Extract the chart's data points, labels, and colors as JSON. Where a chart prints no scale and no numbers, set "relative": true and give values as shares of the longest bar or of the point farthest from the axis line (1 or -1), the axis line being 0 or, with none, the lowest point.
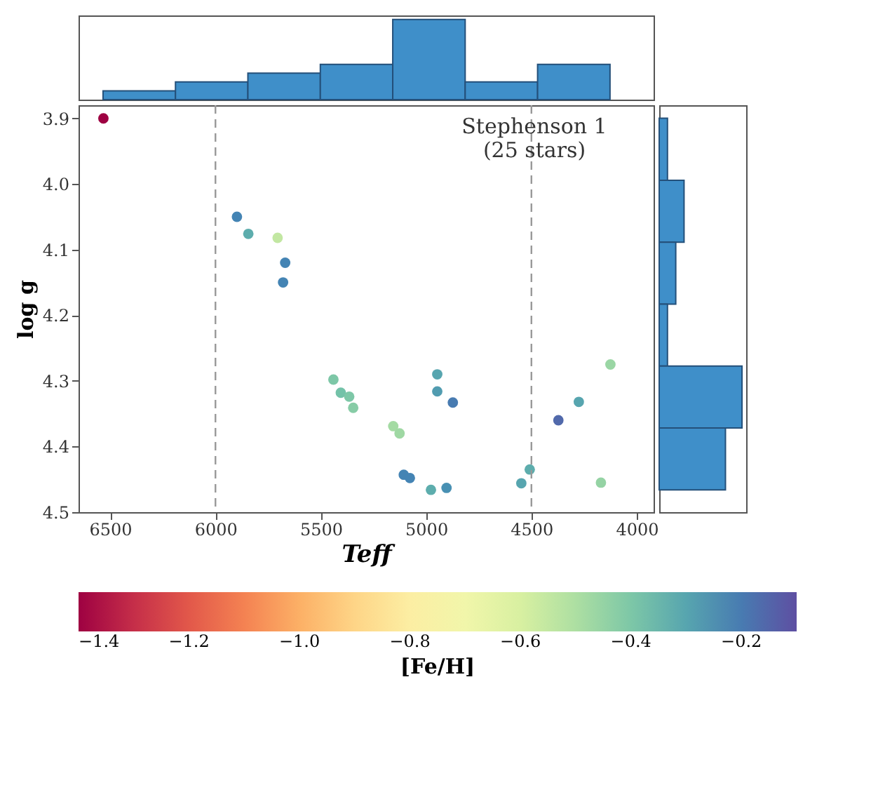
{
  "chart_data": [
    {
      "type": "bar",
      "categories": [
        null,
        null,
        null,
        null,
        null,
        null,
        null
      ],
      "values": [
        0.11,
        0.22,
        0.33,
        0.44,
        1,
        0.22,
        0.44
      ],
      "relative": true,
      "color": "#3f8fc9"
    },
    {
      "type": "scatter",
      "marker": "circle",
      "grid": false,
      "x": [
        6532,
        5898,
        5844,
        5705,
        5669,
        5679,
        5440,
        5405,
        5365,
        5346,
        5156,
        5126,
        5106,
        5077,
        4977,
        4903,
        4947,
        4947,
        4873,
        4548,
        4508,
        4372,
        4275,
        4125,
        4170
      ],
      "values": [
        3.9,
        4.05,
        4.076,
        4.082,
        4.12,
        4.15,
        4.298,
        4.318,
        4.324,
        4.341,
        4.369,
        4.38,
        4.443,
        4.448,
        4.466,
        4.463,
        4.29,
        4.316,
        4.333,
        4.456,
        4.435,
        4.36,
        4.332,
        4.275,
        4.455
      ],
      "cvalues": [
        -1.4,
        -0.22,
        -0.32,
        -0.55,
        -0.22,
        -0.22,
        -0.4,
        -0.38,
        -0.4,
        -0.42,
        -0.48,
        -0.47,
        -0.22,
        -0.22,
        -0.32,
        -0.25,
        -0.3,
        -0.28,
        -0.2,
        -0.3,
        -0.32,
        -0.16,
        -0.3,
        -0.46,
        -0.45
      ],
      "xlim": [
        6650,
        3920
      ],
      "xticks": [
        6500,
        6000,
        5500,
        5000,
        4500,
        4000
      ],
      "ylim": [
        4.5,
        3.88
      ],
      "yticks": [
        3.9,
        {
          "value": 4,
          "label": "4.0"
        },
        4.1,
        4.2,
        4.3,
        4.4,
        4.5
      ],
      "clim": [
        -1.4,
        -0.1
      ],
      "cticks": [
        -1.4,
        -1.2,
        {
          "value": -1,
          "label": "−1.0"
        },
        -0.8,
        -0.6,
        -0.4,
        -0.2
      ],
      "clabel": "[Fe/H]",
      "xlabel": "Teff",
      "ylabel": "log g",
      "annotations": [
        "Stephenson 1\n(25 stars)"
      ],
      "ref_lines": [
        {
          "axis": "x",
          "value": 6000,
          "label": null,
          "color": "#999999",
          "line_style": "dashed"
        },
        {
          "axis": "x",
          "value": 4500,
          "label": null,
          "color": "#999999",
          "line_style": "dashed"
        }
      ]
    },
    {
      "type": "bar",
      "orientation": "horizontal",
      "categories": [
        null,
        null,
        null,
        null,
        null,
        null
      ],
      "values": [
        0.1,
        0.3,
        0.2,
        0.1,
        1,
        0.8
      ],
      "relative": true,
      "color": "#3f8fc9"
    }
  ]
}
